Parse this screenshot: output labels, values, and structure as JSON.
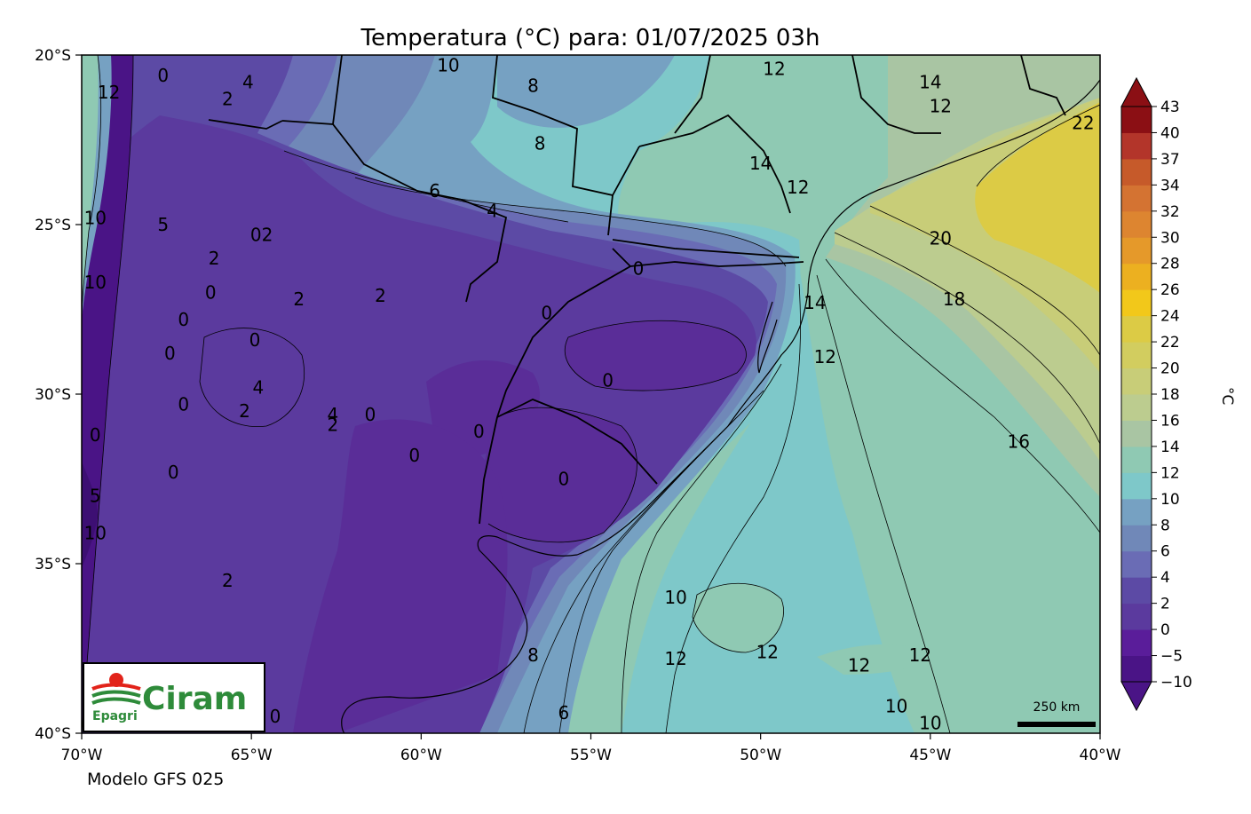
{
  "title": "Temperatura (°C) para: 01/07/2025 03h",
  "model_label": "Modelo GFS 025",
  "logo": {
    "brand": "Ciram",
    "org": "Epagri"
  },
  "scale_bar": {
    "label": "250 km"
  },
  "colorbar": {
    "label": "°C",
    "levels": [
      -10,
      -5,
      0,
      2,
      4,
      6,
      8,
      10,
      12,
      14,
      16,
      18,
      20,
      22,
      24,
      26,
      28,
      30,
      32,
      34,
      37,
      40,
      43
    ],
    "tick_labels": [
      "−10",
      "−5",
      "0",
      "2",
      "4",
      "6",
      "8",
      "10",
      "12",
      "14",
      "16",
      "18",
      "20",
      "22",
      "24",
      "26",
      "28",
      "30",
      "32",
      "34",
      "37",
      "40",
      "43"
    ],
    "colors": [
      "#4a1486",
      "#5a1d9a",
      "#5b3a9e",
      "#5c4aa5",
      "#6a6cb5",
      "#7088b8",
      "#76a1c2",
      "#7ec8c9",
      "#8fc9b3",
      "#a9c5a3",
      "#bccc8f",
      "#c8cd78",
      "#d2cd5f",
      "#dccb45",
      "#f2c81a",
      "#ecb020",
      "#e5992a",
      "#dd8530",
      "#d47332",
      "#c65a2a",
      "#b3352a",
      "#8b0f14"
    ]
  },
  "axes": {
    "x_ticks": [
      "70°W",
      "65°W",
      "60°W",
      "55°W",
      "50°W",
      "45°W",
      "40°W"
    ],
    "y_ticks": [
      "20°S",
      "25°S",
      "30°S",
      "35°S",
      "40°S"
    ],
    "lon_range": [
      -70,
      -40
    ],
    "lat_range": [
      -40,
      -20
    ]
  },
  "contour_labels": [
    {
      "text": "0",
      "lon": -67.6,
      "lat": -20.6
    },
    {
      "text": "2",
      "lon": -65.7,
      "lat": -21.3
    },
    {
      "text": "4",
      "lon": -65.1,
      "lat": -20.8
    },
    {
      "text": "10",
      "lon": -59.2,
      "lat": -20.3
    },
    {
      "text": "8",
      "lon": -56.7,
      "lat": -20.9
    },
    {
      "text": "8",
      "lon": -56.5,
      "lat": -22.6
    },
    {
      "text": "12",
      "lon": -49.6,
      "lat": -20.4
    },
    {
      "text": "14",
      "lon": -45.0,
      "lat": -20.8
    },
    {
      "text": "12",
      "lon": -44.7,
      "lat": -21.5
    },
    {
      "text": "22",
      "lon": -40.5,
      "lat": -22.0
    },
    {
      "text": "14",
      "lon": -50.0,
      "lat": -23.2
    },
    {
      "text": "12",
      "lon": -48.9,
      "lat": -23.9
    },
    {
      "text": "6",
      "lon": -59.6,
      "lat": -24.0
    },
    {
      "text": "4",
      "lon": -57.9,
      "lat": -24.6
    },
    {
      "text": "20",
      "lon": -44.7,
      "lat": -25.4
    },
    {
      "text": "18",
      "lon": -44.3,
      "lat": -27.2
    },
    {
      "text": "14",
      "lon": -48.4,
      "lat": -27.3
    },
    {
      "text": "12",
      "lon": -48.1,
      "lat": -28.9
    },
    {
      "text": "2",
      "lon": -63.6,
      "lat": -27.2
    },
    {
      "text": "2",
      "lon": -61.2,
      "lat": -27.1
    },
    {
      "text": "0",
      "lon": -56.3,
      "lat": -27.6
    },
    {
      "text": "0",
      "lon": -53.6,
      "lat": -26.3
    },
    {
      "text": "0",
      "lon": -54.5,
      "lat": -29.6
    },
    {
      "text": "4",
      "lon": -64.8,
      "lat": -29.8
    },
    {
      "text": "2",
      "lon": -65.2,
      "lat": -30.5
    },
    {
      "text": "4",
      "lon": -62.6,
      "lat": -30.6
    },
    {
      "text": "2",
      "lon": -62.6,
      "lat": -30.9
    },
    {
      "text": "0",
      "lon": -61.5,
      "lat": -30.6
    },
    {
      "text": "0",
      "lon": -60.2,
      "lat": -31.8
    },
    {
      "text": "0",
      "lon": -58.3,
      "lat": -31.1
    },
    {
      "text": "0",
      "lon": -55.8,
      "lat": -32.5
    },
    {
      "text": "16",
      "lon": -42.4,
      "lat": -31.4
    },
    {
      "text": "10",
      "lon": -52.5,
      "lat": -36.0
    },
    {
      "text": "12",
      "lon": -52.5,
      "lat": -37.8
    },
    {
      "text": "12",
      "lon": -49.8,
      "lat": -37.6
    },
    {
      "text": "12",
      "lon": -47.1,
      "lat": -38.0
    },
    {
      "text": "12",
      "lon": -45.3,
      "lat": -37.7
    },
    {
      "text": "10",
      "lon": -46.0,
      "lat": -39.2
    },
    {
      "text": "10",
      "lon": -45.0,
      "lat": -39.7
    },
    {
      "text": "8",
      "lon": -56.7,
      "lat": -37.7
    },
    {
      "text": "6",
      "lon": -55.8,
      "lat": -39.4
    },
    {
      "text": "0",
      "lon": -64.3,
      "lat": -39.5
    },
    {
      "text": "2",
      "lon": -65.7,
      "lat": -35.5
    },
    {
      "text": "0",
      "lon": -67.0,
      "lat": -30.3
    },
    {
      "text": "0",
      "lon": -67.4,
      "lat": -28.8
    },
    {
      "text": "0",
      "lon": -66.2,
      "lat": -27.0
    },
    {
      "text": "0",
      "lon": -64.9,
      "lat": -28.4
    },
    {
      "text": "2",
      "lon": -66.1,
      "lat": -26.0
    },
    {
      "text": "0",
      "lon": -67.0,
      "lat": -27.8
    },
    {
      "text": "02",
      "lon": -64.7,
      "lat": -25.3
    },
    {
      "text": "5",
      "lon": -67.6,
      "lat": -25.0
    },
    {
      "text": "0",
      "lon": -67.3,
      "lat": -32.3
    },
    {
      "text": "10",
      "lon": -69.6,
      "lat": -26.7
    },
    {
      "text": "10",
      "lon": -69.6,
      "lat": -24.8
    },
    {
      "text": "12",
      "lon": -69.2,
      "lat": -21.1
    },
    {
      "text": "10",
      "lon": -69.6,
      "lat": -34.1
    },
    {
      "text": "0",
      "lon": -69.6,
      "lat": -31.2
    },
    {
      "text": "5",
      "lon": -69.6,
      "lat": -33.0
    }
  ]
}
